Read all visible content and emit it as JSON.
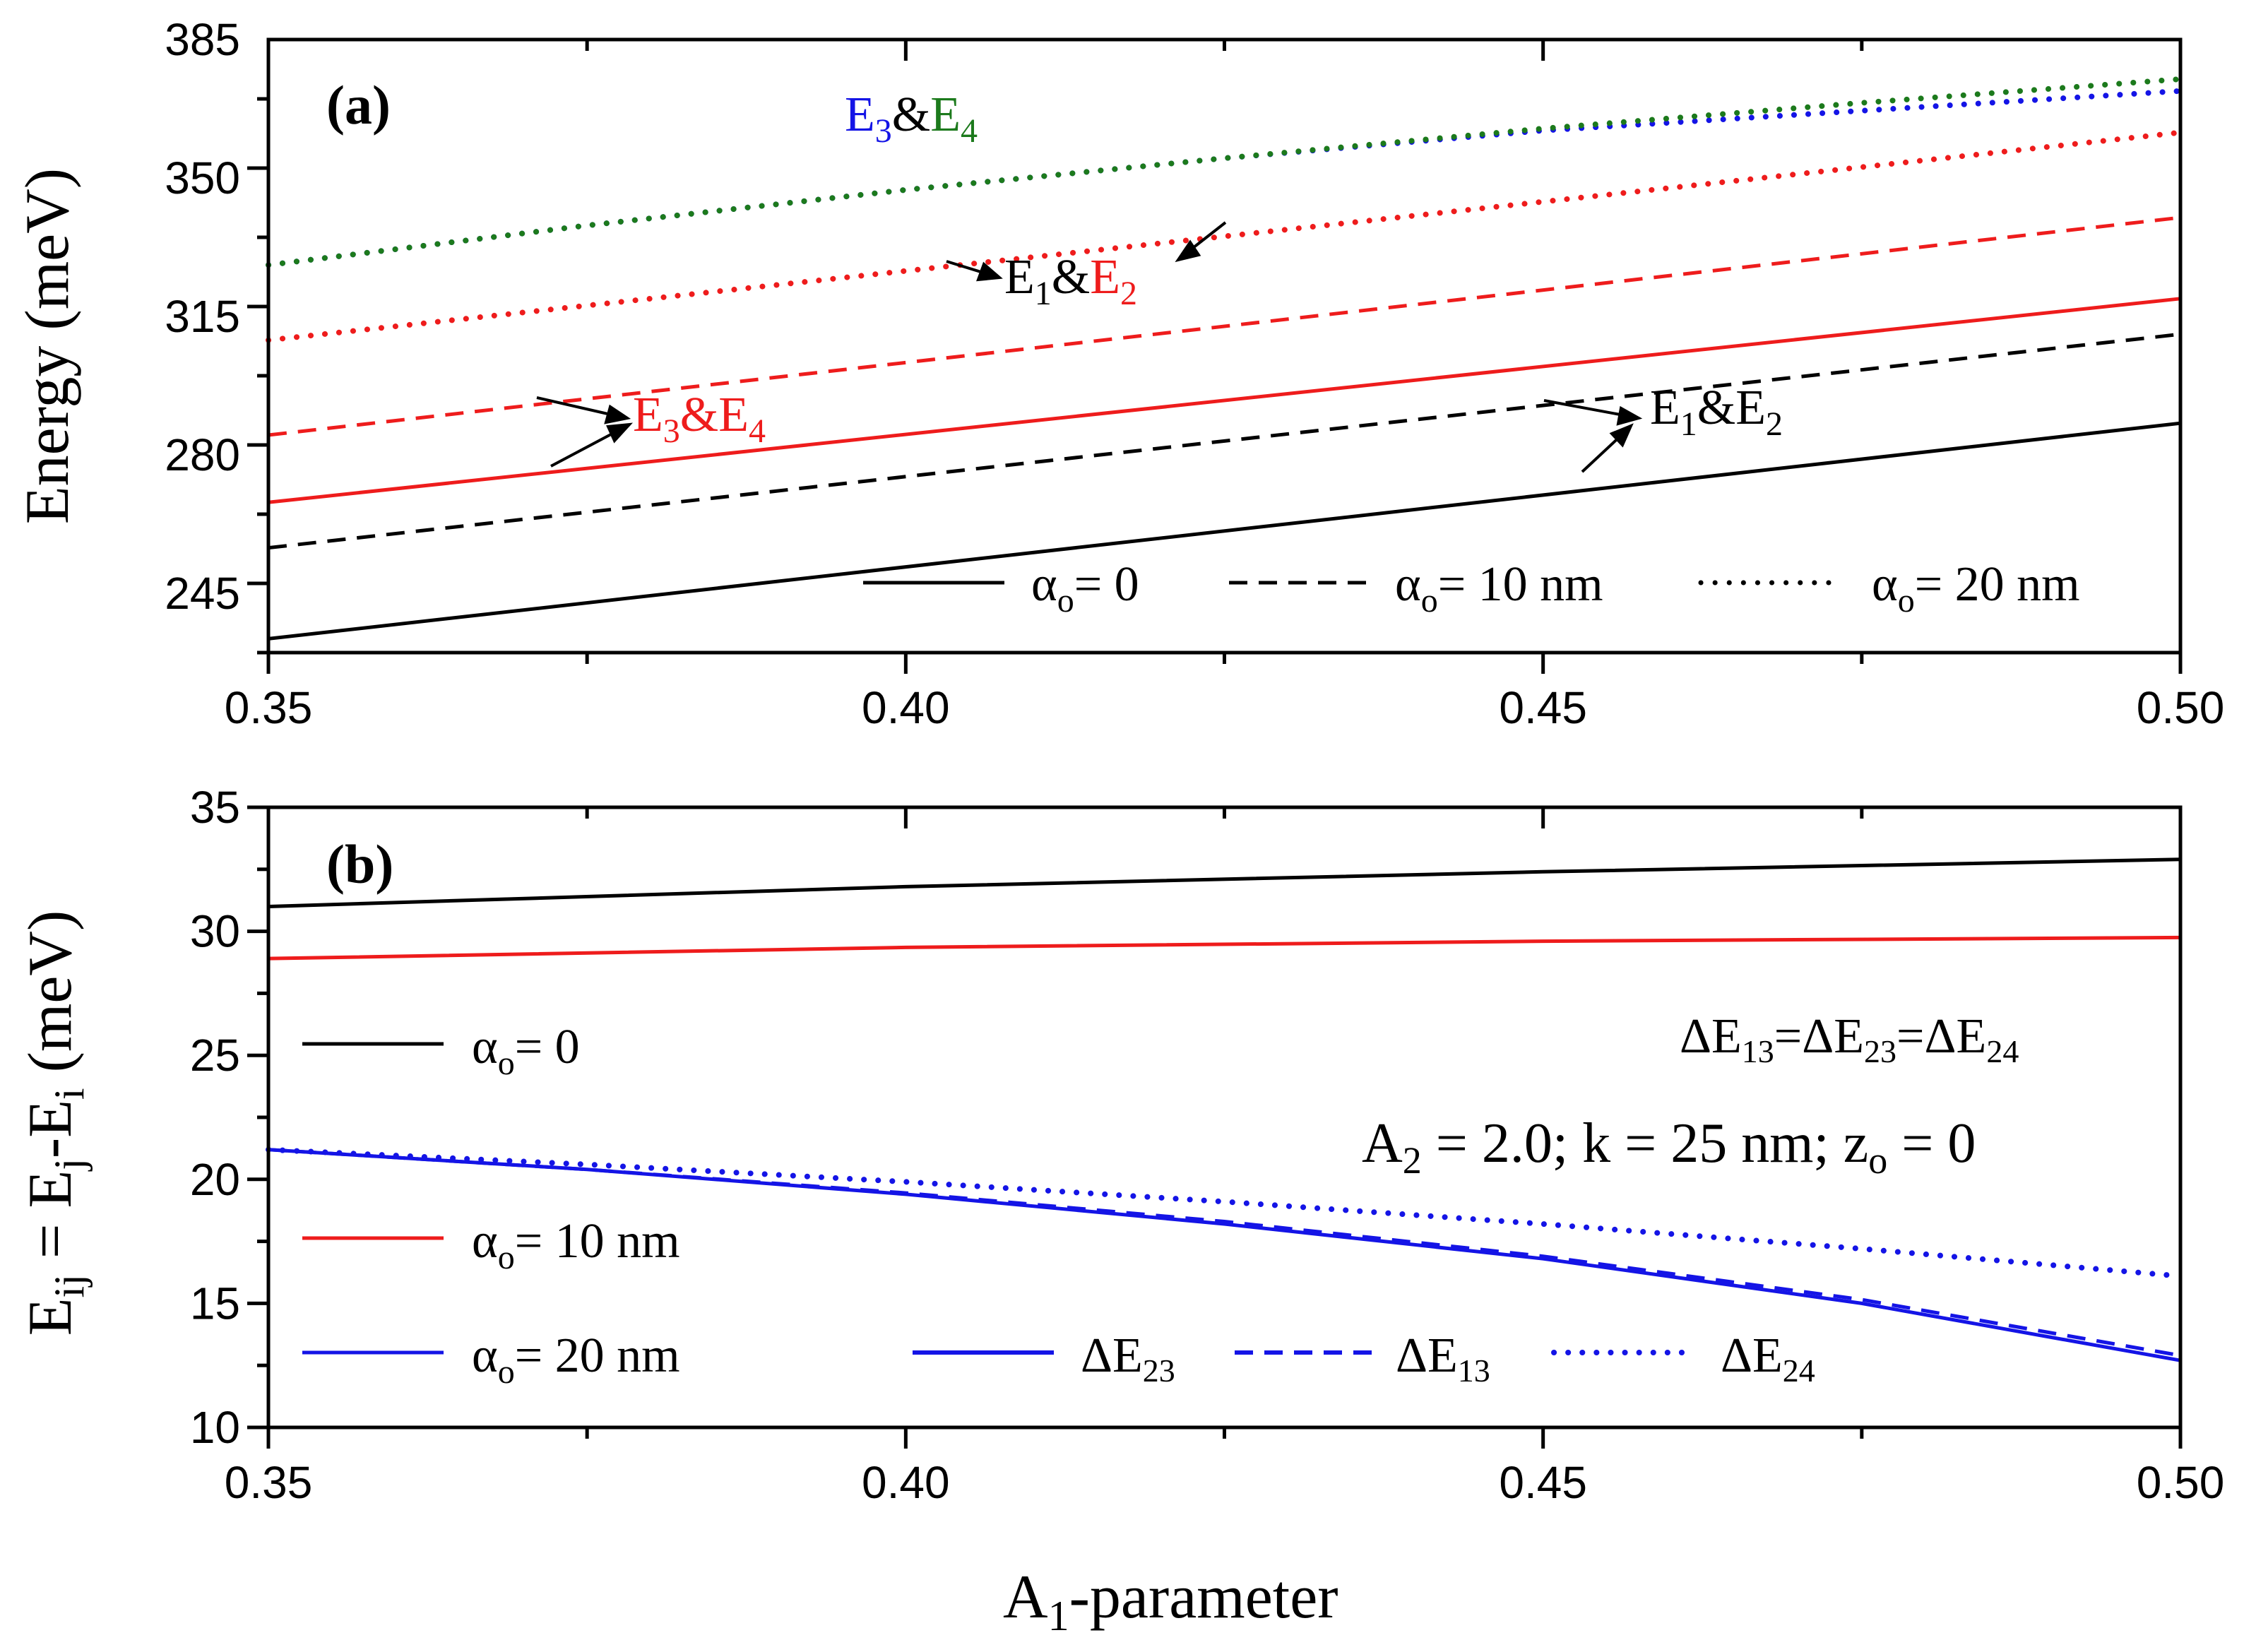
{
  "colors": {
    "black": "#000000",
    "red": "#ee1c1c",
    "blue": "#1414e6",
    "green": "#1c7a1c"
  },
  "chart_data": [
    {
      "type": "line",
      "panel": "(a)",
      "xlabel": "",
      "ylabel": "Energy (meV)",
      "xlim": [
        0.35,
        0.5
      ],
      "ylim": [
        230,
        385
      ],
      "x_ticks": [
        "0.35",
        "0.40",
        "0.45",
        "0.50"
      ],
      "y_ticks": [
        "245",
        "280",
        "315",
        "350",
        "385"
      ],
      "x": [
        0.35,
        0.5
      ],
      "series": [
        {
          "name": "E1&E2, αo = 0",
          "color": "black",
          "style": "solid",
          "values": [
            233.5,
            288.0
          ]
        },
        {
          "name": "E3&E4, αo = 0",
          "color": "red",
          "style": "solid",
          "values": [
            268.0,
            319.5
          ]
        },
        {
          "name": "E1&E2, αo = 10 nm",
          "color": "black",
          "style": "dashed",
          "values": [
            256.5,
            310.5
          ]
        },
        {
          "name": "E3&E4, αo = 10 nm",
          "color": "red",
          "style": "dashed",
          "values": [
            285.0,
            340.0
          ]
        },
        {
          "name": "E1&E2, αo = 20 nm",
          "color": "red",
          "style": "dotted",
          "values": [
            309.0,
            361.5
          ]
        },
        {
          "name": "E3, αo = 20 nm",
          "color": "blue",
          "style": "dotted",
          "x": [
            0.35,
            0.375,
            0.4,
            0.425,
            0.45,
            0.475,
            0.5
          ],
          "values": [
            328.0,
            338.0,
            347.0,
            355.0,
            362.0,
            367.0,
            372.0
          ]
        },
        {
          "name": "E4, αo = 20 nm",
          "color": "green",
          "style": "dotted",
          "x": [
            0.35,
            0.375,
            0.4,
            0.425,
            0.45,
            0.475,
            0.5
          ],
          "values": [
            328.0,
            338.0,
            347.0,
            355.0,
            362.5,
            369.0,
            375.0
          ]
        }
      ],
      "legend": {
        "placement": "bottom-right",
        "items": [
          {
            "style": "solid",
            "symbol": "α",
            "sub": "o",
            "rest": "= 0"
          },
          {
            "style": "dashed",
            "symbol": "α",
            "sub": "o",
            "rest": "= 10 nm"
          },
          {
            "style": "dotted",
            "symbol": "α",
            "sub": "o",
            "rest": "= 20 nm"
          }
        ]
      },
      "annotations": {
        "e3e4_dotted": {
          "a": "E",
          "a_sub": "3",
          "amp": "&",
          "b": "E",
          "b_sub": "4"
        },
        "e1e2_dotted": {
          "a": "E",
          "a_sub": "1",
          "amp": "&",
          "b": "E",
          "b_sub": "2"
        },
        "e3e4_low": {
          "a": "E",
          "a_sub": "3",
          "amp": "&",
          "b": "E",
          "b_sub": "4"
        },
        "e1e2_low": {
          "a": "E",
          "a_sub": "1",
          "amp": "&",
          "b": "E",
          "b_sub": "2"
        }
      }
    },
    {
      "type": "line",
      "panel": "(b)",
      "xlabel": {
        "main": "A",
        "sub": "1",
        "rest": "-parameter"
      },
      "ylabel": {
        "a": "E",
        "a_sub": "ij",
        "eq": " = E",
        "b_sub": "j",
        "minus": "-E",
        "c_sub": "i",
        "unit": " (meV)"
      },
      "xlim": [
        0.35,
        0.5
      ],
      "ylim": [
        10,
        35
      ],
      "x_ticks": [
        "0.35",
        "0.40",
        "0.45",
        "0.50"
      ],
      "y_ticks": [
        "10",
        "15",
        "20",
        "25",
        "30",
        "35"
      ],
      "series": [
        {
          "name": "αo = 0",
          "color": "black",
          "style": "solid",
          "x": [
            0.35,
            0.4,
            0.45,
            0.5
          ],
          "values": [
            31.0,
            31.8,
            32.4,
            32.9
          ]
        },
        {
          "name": "αo = 10 nm",
          "color": "red",
          "style": "solid",
          "x": [
            0.35,
            0.4,
            0.45,
            0.5
          ],
          "values": [
            28.9,
            29.35,
            29.6,
            29.75
          ]
        },
        {
          "name": "ΔE23 (αo = 20 nm)",
          "color": "blue",
          "style": "solid",
          "x": [
            0.35,
            0.375,
            0.4,
            0.425,
            0.45,
            0.475,
            0.5
          ],
          "values": [
            21.2,
            20.4,
            19.4,
            18.2,
            16.8,
            15.0,
            12.7
          ]
        },
        {
          "name": "ΔE13 (αo = 20 nm)",
          "color": "blue",
          "style": "dashed",
          "x": [
            0.35,
            0.375,
            0.4,
            0.425,
            0.45,
            0.475,
            0.5
          ],
          "values": [
            21.2,
            20.4,
            19.45,
            18.3,
            16.9,
            15.15,
            12.9
          ]
        },
        {
          "name": "ΔE24 (αo = 20 nm)",
          "color": "blue",
          "style": "dotted",
          "x": [
            0.35,
            0.375,
            0.4,
            0.425,
            0.45,
            0.475,
            0.5
          ],
          "values": [
            21.2,
            20.6,
            19.9,
            19.1,
            18.2,
            17.2,
            16.1
          ]
        }
      ],
      "legend_left": {
        "placement": "left",
        "items": [
          {
            "color": "black",
            "symbol": "α",
            "sub": "o",
            "rest": "= 0"
          },
          {
            "color": "red",
            "symbol": "α",
            "sub": "o",
            "rest": "= 10 nm"
          },
          {
            "color": "blue",
            "symbol": "α",
            "sub": "o",
            "rest": "= 20 nm"
          }
        ]
      },
      "legend_bottom": {
        "placement": "bottom-right",
        "items": [
          {
            "style": "solid",
            "label": "ΔE",
            "sub": "23"
          },
          {
            "style": "dashed",
            "label": "ΔE",
            "sub": "13"
          },
          {
            "style": "dotted",
            "label": "ΔE",
            "sub": "24"
          }
        ]
      },
      "annotations": {
        "equality": {
          "p1": "ΔE",
          "s1": "13",
          "p2": "=ΔE",
          "s2": "23",
          "p3": "=ΔE",
          "s3": "24"
        },
        "params": {
          "p1": "A",
          "s1": "2",
          "p2": " = 2.0; k = 25 nm; z",
          "s2": "o",
          "p3": " = 0"
        }
      }
    }
  ]
}
